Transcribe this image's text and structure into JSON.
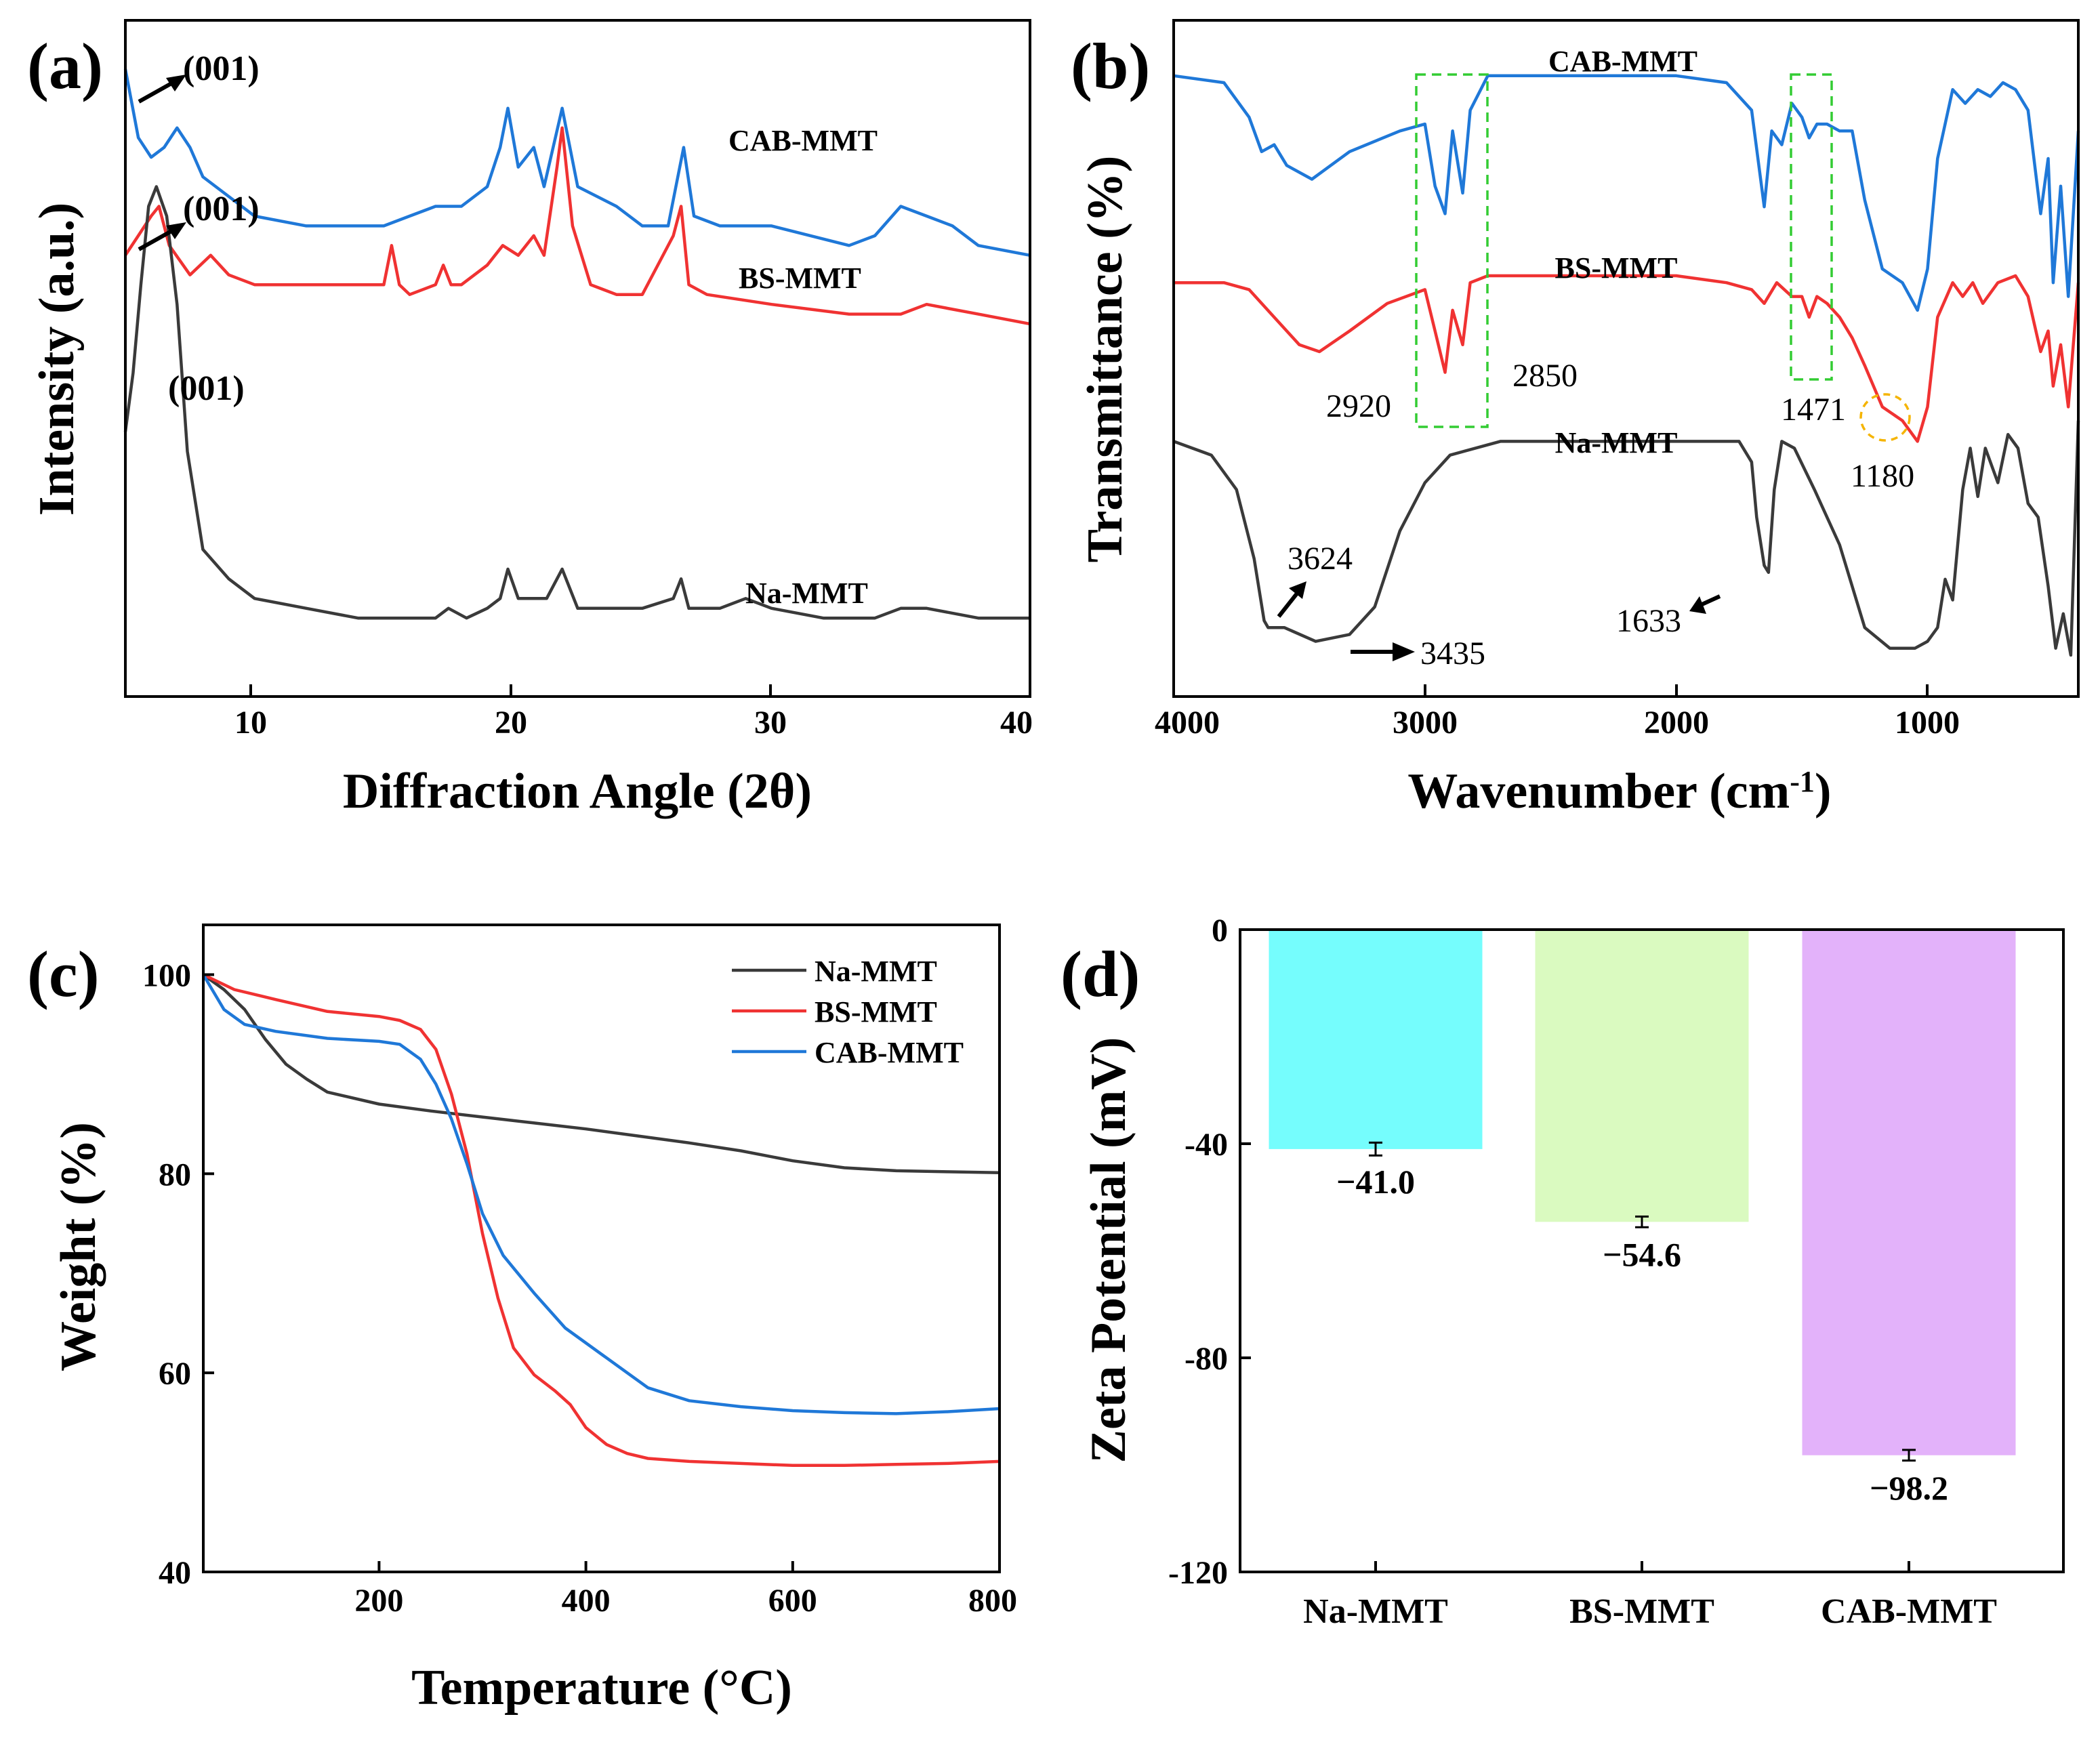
{
  "colors": {
    "na": "#3a3a3a",
    "bs": "#f03232",
    "cab": "#1f78d8",
    "dashGreen": "#33cc33",
    "dashOrange": "#f5b400",
    "barNa": "#75fdfd",
    "barBs": "#dafac0",
    "barCab": "#e3b2fa"
  },
  "chart_data": [
    {
      "panel": "(a)",
      "type": "line",
      "xlabel": "Diffraction Angle (2θ)",
      "ylabel": "Intensity (a.u.)",
      "xlim": [
        5,
        40
      ],
      "x_ticks": [
        "10",
        "20",
        "30",
        "40"
      ],
      "series": [
        {
          "name": "CAB-MMT",
          "label": "CAB-MMT",
          "color_key": "cab",
          "x": [
            5,
            5.5,
            6,
            6.5,
            7,
            7.5,
            8,
            9,
            10,
            12,
            14,
            15,
            16,
            17,
            18,
            19,
            19.5,
            19.8,
            20.2,
            20.8,
            21.2,
            21.9,
            22.5,
            24,
            25,
            26,
            26.3,
            26.6,
            27,
            28,
            30,
            33,
            34,
            35,
            36,
            37,
            38,
            40
          ],
          "y": [
            0.64,
            0.57,
            0.55,
            0.56,
            0.58,
            0.56,
            0.53,
            0.51,
            0.49,
            0.48,
            0.48,
            0.48,
            0.49,
            0.5,
            0.5,
            0.52,
            0.56,
            0.6,
            0.54,
            0.56,
            0.52,
            0.6,
            0.52,
            0.5,
            0.48,
            0.48,
            0.52,
            0.56,
            0.49,
            0.48,
            0.48,
            0.46,
            0.47,
            0.5,
            0.49,
            0.48,
            0.46,
            0.45
          ]
        },
        {
          "name": "BS-MMT",
          "label": "BS-MMT",
          "color_key": "bs",
          "x": [
            5,
            5.5,
            6,
            6.3,
            6.7,
            7.5,
            8.3,
            9,
            10,
            12,
            14,
            15,
            15.3,
            15.6,
            16,
            17,
            17.3,
            17.6,
            18,
            19,
            19.6,
            20.2,
            20.8,
            21.2,
            21.7,
            21.9,
            22.3,
            23,
            24,
            25,
            26.2,
            26.5,
            26.8,
            27.5,
            30,
            33,
            35,
            36,
            38,
            40
          ],
          "y": [
            0.45,
            0.47,
            0.49,
            0.5,
            0.46,
            0.43,
            0.45,
            0.43,
            0.42,
            0.42,
            0.42,
            0.42,
            0.46,
            0.42,
            0.41,
            0.42,
            0.44,
            0.42,
            0.42,
            0.44,
            0.46,
            0.45,
            0.47,
            0.45,
            0.54,
            0.58,
            0.48,
            0.42,
            0.41,
            0.41,
            0.47,
            0.5,
            0.42,
            0.41,
            0.4,
            0.39,
            0.39,
            0.4,
            0.39,
            0.38
          ]
        },
        {
          "name": "Na-MMT",
          "label": "Na-MMT",
          "color_key": "na",
          "x": [
            5,
            5.3,
            5.6,
            5.9,
            6.2,
            6.6,
            7.0,
            7.4,
            8,
            9,
            10,
            12,
            14,
            15,
            16,
            17,
            17.5,
            18.2,
            19,
            19.5,
            19.8,
            20.2,
            20.8,
            21.3,
            21.9,
            22.5,
            24,
            25,
            26.2,
            26.5,
            26.8,
            27.5,
            28,
            29,
            30,
            32,
            34,
            35,
            36,
            38,
            40
          ],
          "y": [
            0.27,
            0.33,
            0.42,
            0.5,
            0.52,
            0.49,
            0.4,
            0.25,
            0.15,
            0.12,
            0.1,
            0.09,
            0.08,
            0.08,
            0.08,
            0.08,
            0.09,
            0.08,
            0.09,
            0.1,
            0.13,
            0.1,
            0.1,
            0.1,
            0.13,
            0.09,
            0.09,
            0.09,
            0.1,
            0.12,
            0.09,
            0.09,
            0.09,
            0.1,
            0.09,
            0.08,
            0.08,
            0.09,
            0.09,
            0.08,
            0.08
          ]
        }
      ],
      "annotations": [
        "(001)",
        "(001)",
        "(001)"
      ]
    },
    {
      "panel": "(b)",
      "type": "line",
      "xlabel": "Wavenumber (cm",
      "xlabel_sup": "-1",
      "xlabel_end": ")",
      "ylabel": "Transmittance (%)",
      "xlim": [
        4000,
        400
      ],
      "x_ticks": [
        "4000",
        "3000",
        "2000",
        "1000"
      ],
      "series": [
        {
          "name": "CAB-MMT",
          "label": "CAB-MMT",
          "color_key": "cab",
          "x": [
            4000,
            3800,
            3700,
            3650,
            3600,
            3550,
            3450,
            3300,
            3100,
            3000,
            2960,
            2920,
            2890,
            2850,
            2820,
            2750,
            2500,
            2000,
            1800,
            1700,
            1650,
            1620,
            1580,
            1540,
            1500,
            1471,
            1440,
            1400,
            1350,
            1300,
            1250,
            1180,
            1100,
            1040,
            1000,
            960,
            900,
            850,
            800,
            750,
            700,
            650,
            600,
            550,
            520,
            500,
            470,
            440,
            400
          ],
          "y": [
            0.9,
            0.89,
            0.84,
            0.79,
            0.8,
            0.77,
            0.75,
            0.79,
            0.82,
            0.83,
            0.74,
            0.7,
            0.82,
            0.73,
            0.85,
            0.9,
            0.9,
            0.9,
            0.89,
            0.85,
            0.71,
            0.82,
            0.8,
            0.86,
            0.84,
            0.81,
            0.83,
            0.83,
            0.82,
            0.82,
            0.72,
            0.62,
            0.6,
            0.56,
            0.62,
            0.78,
            0.88,
            0.86,
            0.88,
            0.87,
            0.89,
            0.88,
            0.85,
            0.7,
            0.78,
            0.6,
            0.74,
            0.58,
            0.82
          ]
        },
        {
          "name": "BS-MMT",
          "label": "BS-MMT",
          "color_key": "bs",
          "x": [
            4000,
            3800,
            3700,
            3600,
            3500,
            3420,
            3300,
            3150,
            3000,
            2960,
            2920,
            2890,
            2850,
            2820,
            2750,
            2500,
            2000,
            1800,
            1700,
            1650,
            1600,
            1540,
            1500,
            1471,
            1440,
            1400,
            1350,
            1300,
            1250,
            1180,
            1100,
            1040,
            1000,
            960,
            900,
            860,
            820,
            780,
            720,
            650,
            600,
            550,
            520,
            500,
            470,
            440,
            400
          ],
          "y": [
            0.6,
            0.6,
            0.59,
            0.55,
            0.51,
            0.5,
            0.53,
            0.57,
            0.59,
            0.53,
            0.47,
            0.56,
            0.51,
            0.6,
            0.61,
            0.61,
            0.61,
            0.6,
            0.59,
            0.57,
            0.6,
            0.58,
            0.58,
            0.55,
            0.58,
            0.57,
            0.55,
            0.52,
            0.48,
            0.42,
            0.4,
            0.37,
            0.42,
            0.55,
            0.6,
            0.58,
            0.6,
            0.57,
            0.6,
            0.61,
            0.58,
            0.5,
            0.53,
            0.45,
            0.51,
            0.42,
            0.6
          ]
        },
        {
          "name": "Na-MMT",
          "label": "Na-MMT",
          "color_key": "na",
          "x": [
            4000,
            3850,
            3750,
            3680,
            3640,
            3624,
            3560,
            3435,
            3300,
            3200,
            3100,
            3000,
            2900,
            2700,
            2500,
            2200,
            2000,
            1800,
            1750,
            1700,
            1680,
            1650,
            1633,
            1610,
            1580,
            1530,
            1450,
            1350,
            1250,
            1150,
            1050,
            1000,
            960,
            930,
            900,
            860,
            830,
            800,
            770,
            720,
            680,
            640,
            600,
            560,
            520,
            490,
            460,
            430,
            400
          ],
          "y": [
            0.37,
            0.35,
            0.3,
            0.2,
            0.11,
            0.1,
            0.1,
            0.08,
            0.09,
            0.13,
            0.24,
            0.31,
            0.35,
            0.37,
            0.37,
            0.37,
            0.37,
            0.37,
            0.37,
            0.34,
            0.26,
            0.19,
            0.18,
            0.3,
            0.37,
            0.36,
            0.3,
            0.22,
            0.1,
            0.07,
            0.07,
            0.08,
            0.1,
            0.17,
            0.14,
            0.3,
            0.36,
            0.29,
            0.36,
            0.31,
            0.38,
            0.36,
            0.28,
            0.26,
            0.16,
            0.07,
            0.12,
            0.06,
            0.4
          ]
        }
      ],
      "annotations": [
        "2920",
        "2850",
        "1471",
        "1180",
        "3624",
        "3435",
        "1633"
      ]
    },
    {
      "panel": "(c)",
      "type": "line",
      "xlabel": "Temperature (°C)",
      "ylabel": "Weight (%)",
      "xlim": [
        30,
        800
      ],
      "ylim": [
        40,
        105
      ],
      "x_ticks": [
        "200",
        "400",
        "600",
        "800"
      ],
      "y_ticks": [
        "40",
        "60",
        "80",
        "100"
      ],
      "legend_position": "top-right",
      "series": [
        {
          "name": "Na-MMT",
          "label": "Na-MMT",
          "color_key": "na",
          "x": [
            30,
            50,
            70,
            90,
            110,
            130,
            150,
            200,
            250,
            300,
            350,
            400,
            450,
            500,
            550,
            600,
            650,
            700,
            750,
            800
          ],
          "y": [
            100,
            98.5,
            96.5,
            93.5,
            91,
            89.5,
            88.2,
            87,
            86.3,
            85.7,
            85.1,
            84.5,
            83.8,
            83.1,
            82.3,
            81.3,
            80.6,
            80.3,
            80.2,
            80.1
          ]
        },
        {
          "name": "BS-MMT",
          "label": "BS-MMT",
          "color_key": "bs",
          "x": [
            30,
            60,
            100,
            150,
            200,
            220,
            240,
            255,
            270,
            285,
            300,
            315,
            330,
            350,
            370,
            385,
            400,
            420,
            440,
            460,
            500,
            550,
            600,
            650,
            700,
            750,
            800
          ],
          "y": [
            100,
            98.5,
            97.5,
            96.3,
            95.8,
            95.4,
            94.5,
            92.5,
            88,
            82,
            74,
            67.5,
            62.5,
            59.8,
            58.2,
            56.8,
            54.5,
            52.8,
            51.9,
            51.4,
            51.1,
            50.9,
            50.7,
            50.7,
            50.8,
            50.9,
            51.1
          ]
        },
        {
          "name": "CAB-MMT",
          "label": "CAB-MMT",
          "color_key": "cab",
          "x": [
            30,
            50,
            70,
            100,
            150,
            200,
            220,
            240,
            255,
            270,
            285,
            300,
            320,
            350,
            380,
            420,
            460,
            500,
            550,
            600,
            650,
            700,
            750,
            800
          ],
          "y": [
            100,
            96.5,
            95,
            94.3,
            93.6,
            93.3,
            93,
            91.5,
            89,
            85.5,
            81,
            76,
            71.8,
            68,
            64.5,
            61.5,
            58.5,
            57.2,
            56.6,
            56.2,
            56,
            55.9,
            56.1,
            56.4
          ]
        }
      ]
    },
    {
      "panel": "(d)",
      "type": "bar",
      "ylabel": "Zeta Potential (mV)",
      "ylim": [
        -120,
        0
      ],
      "y_ticks": [
        "0",
        "-40",
        "-80",
        "-120"
      ],
      "categories": [
        "Na-MMT",
        "BS-MMT",
        "CAB-MMT"
      ],
      "values": [
        -41.0,
        -54.6,
        -98.2
      ],
      "errors": [
        1.2,
        1.0,
        1.0
      ],
      "value_labels": [
        "−41.0",
        "−54.6",
        "−98.2"
      ],
      "color_keys": [
        "barNa",
        "barBs",
        "barCab"
      ]
    }
  ]
}
